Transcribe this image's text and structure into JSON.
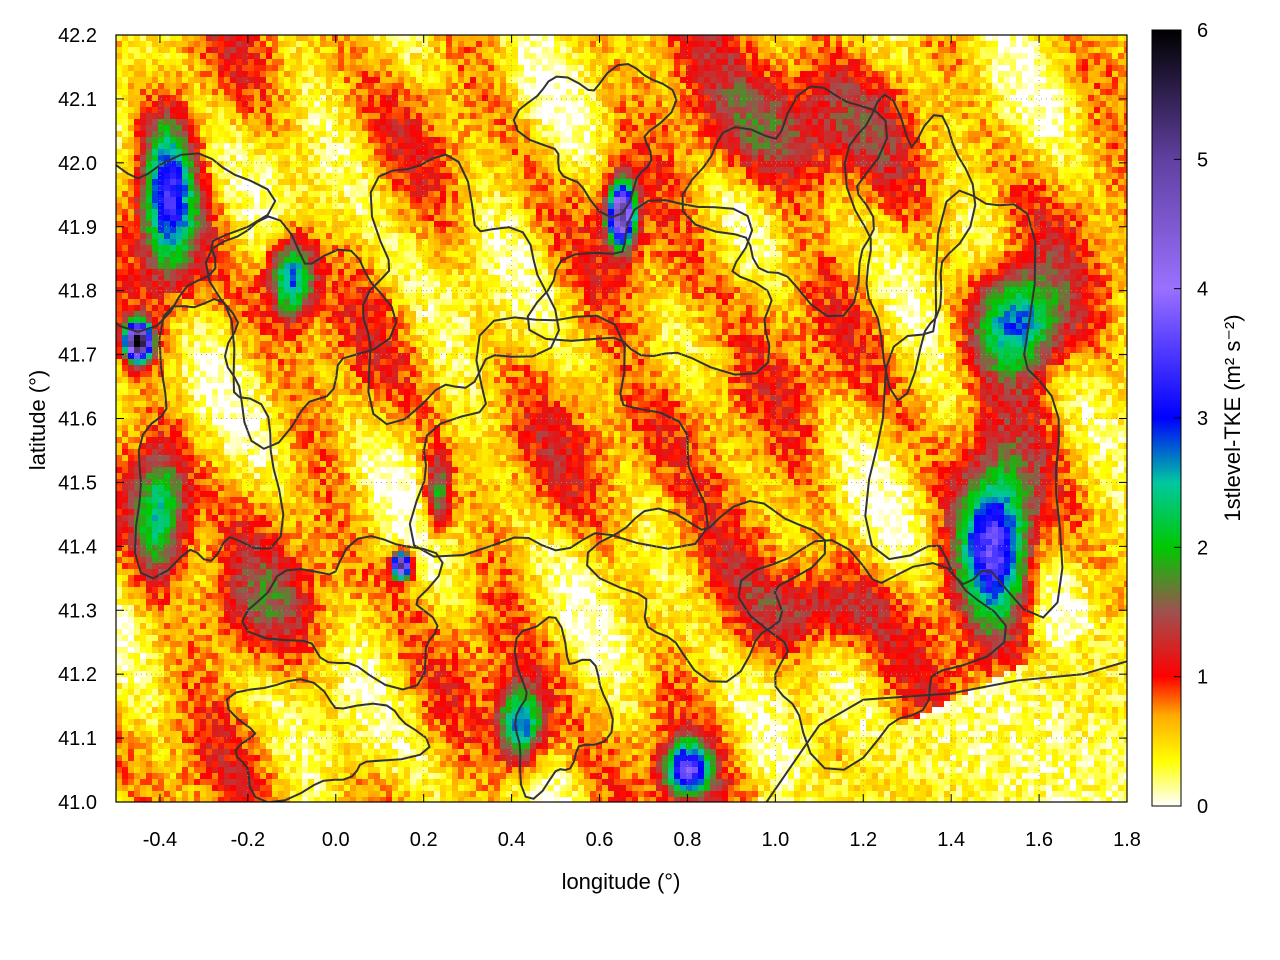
{
  "chart_data": {
    "type": "heatmap",
    "xlabel": "longitude (°)",
    "ylabel": "latitude (°)",
    "xlim": [
      -0.5,
      1.8
    ],
    "ylim": [
      41.0,
      42.2
    ],
    "x_ticks": [
      "-0.4",
      "-0.2",
      "0.0",
      "0.2",
      "0.4",
      "0.6",
      "0.8",
      "1.0",
      "1.2",
      "1.4",
      "1.6",
      "1.8"
    ],
    "y_ticks": [
      "41.0",
      "41.1",
      "41.2",
      "41.3",
      "41.4",
      "41.5",
      "41.6",
      "41.7",
      "41.8",
      "41.9",
      "42.0",
      "42.1",
      "42.2"
    ],
    "colorbar": {
      "label": "1stlevel-TKE (m² s⁻²)",
      "range": [
        0,
        6
      ],
      "ticks": [
        "0",
        "1",
        "2",
        "3",
        "4",
        "5",
        "6"
      ],
      "stops": [
        {
          "value": 0.0,
          "color": "#ffffff"
        },
        {
          "value": 0.35,
          "color": "#ffff00"
        },
        {
          "value": 0.7,
          "color": "#ffaa00"
        },
        {
          "value": 1.0,
          "color": "#ff0000"
        },
        {
          "value": 1.5,
          "color": "#a05050"
        },
        {
          "value": 2.0,
          "color": "#00c800"
        },
        {
          "value": 2.5,
          "color": "#00c8a0"
        },
        {
          "value": 3.0,
          "color": "#0000ff"
        },
        {
          "value": 4.0,
          "color": "#9a70ff"
        },
        {
          "value": 5.0,
          "color": "#6040a0"
        },
        {
          "value": 6.0,
          "color": "#000000"
        }
      ]
    },
    "contour_color": "#333333",
    "grid": true,
    "field_blobs": [
      {
        "x": -0.38,
        "y": 41.95,
        "sx": 0.06,
        "sy": 0.12,
        "v": 3.0
      },
      {
        "x": -0.1,
        "y": 41.82,
        "sx": 0.05,
        "sy": 0.06,
        "v": 3.0
      },
      {
        "x": -0.4,
        "y": 41.45,
        "sx": 0.06,
        "sy": 0.1,
        "v": 2.6
      },
      {
        "x": 0.42,
        "y": 41.12,
        "sx": 0.05,
        "sy": 0.06,
        "v": 3.0
      },
      {
        "x": 0.23,
        "y": 41.48,
        "sx": 0.03,
        "sy": 0.06,
        "v": 2.0
      },
      {
        "x": 0.15,
        "y": 41.37,
        "sx": 0.02,
        "sy": 0.02,
        "v": 5.5
      },
      {
        "x": 0.65,
        "y": 41.92,
        "sx": 0.03,
        "sy": 0.05,
        "v": 5.0
      },
      {
        "x": 1.5,
        "y": 41.4,
        "sx": 0.08,
        "sy": 0.12,
        "v": 3.6
      },
      {
        "x": 1.55,
        "y": 41.75,
        "sx": 0.1,
        "sy": 0.08,
        "v": 3.0
      },
      {
        "x": 0.8,
        "y": 41.05,
        "sx": 0.05,
        "sy": 0.04,
        "v": 3.5
      },
      {
        "x": 0.8,
        "y": 41.6,
        "sx": 0.2,
        "sy": 0.1,
        "v": 1.1
      },
      {
        "x": -0.2,
        "y": 41.3,
        "sx": 0.15,
        "sy": 0.08,
        "v": 1.2
      },
      {
        "x": 1.0,
        "y": 42.05,
        "sx": 0.2,
        "sy": 0.1,
        "v": 1.6
      },
      {
        "x": 1.1,
        "y": 41.3,
        "sx": 0.15,
        "sy": 0.06,
        "v": 1.4
      },
      {
        "x": -0.45,
        "y": 41.72,
        "sx": 0.03,
        "sy": 0.03,
        "v": 5.8
      }
    ]
  }
}
